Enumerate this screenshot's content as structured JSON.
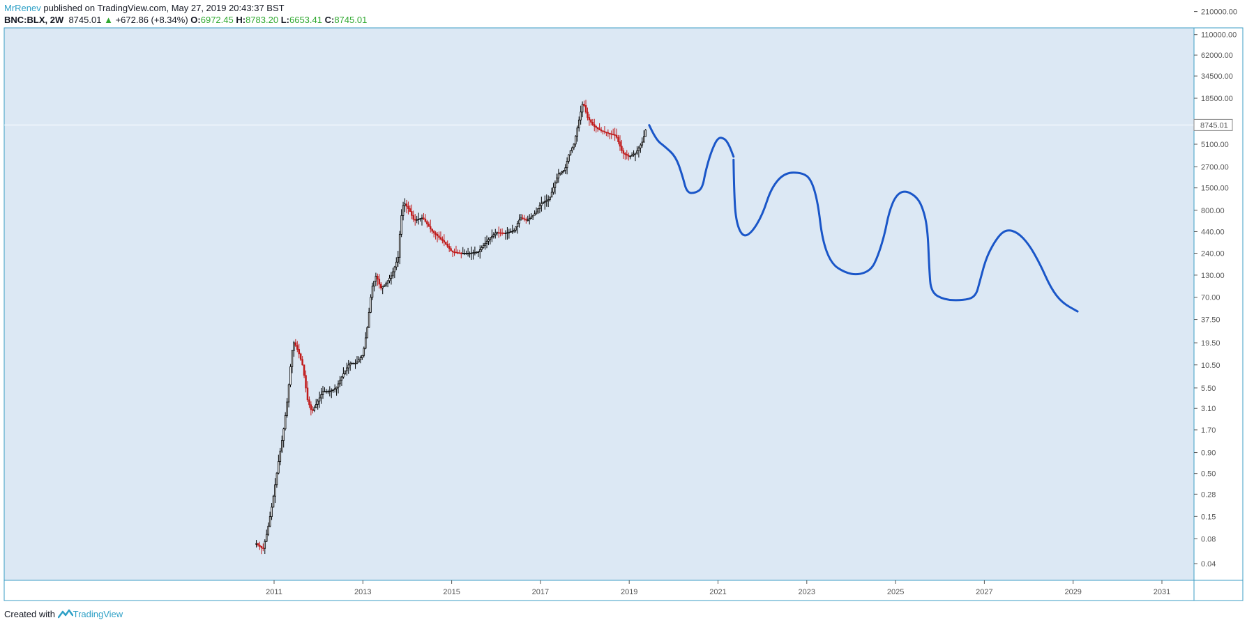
{
  "header": {
    "author": "MrRenev",
    "published_text": "published on TradingView.com, May 27, 2019 20:43:37 BST",
    "symbol": "BNC:BLX, 2W",
    "last": "8745.01",
    "change_arrow": "▲",
    "change": "+672.86 (+8.34%)",
    "open_label": "O:",
    "open": "6972.45",
    "high_label": "H:",
    "high": "8783.20",
    "low_label": "L:",
    "low": "6653.41",
    "close_label": "C:",
    "close": "8745.01"
  },
  "footer": {
    "created_with": "Created with",
    "brand": "TradingView"
  },
  "colors": {
    "background": "#dce8f4",
    "up": "#000000",
    "down": "#c01818",
    "drawing": "#1a56c8",
    "accent": "#2ea0c6"
  },
  "chart_data": {
    "type": "line",
    "y_scale": "log",
    "price_label": "8745.01",
    "y_ticks": [
      "210000.00",
      "110000.00",
      "62000.00",
      "34500.00",
      "18500.00",
      "5100.00",
      "2700.00",
      "1500.00",
      "800.00",
      "440.00",
      "240.00",
      "130.00",
      "70.00",
      "37.50",
      "19.50",
      "10.50",
      "5.50",
      "3.10",
      "1.70",
      "0.90",
      "0.50",
      "0.28",
      "0.15",
      "0.08",
      "0.04"
    ],
    "x_ticks": [
      "2011",
      "2013",
      "2015",
      "2017",
      "2019",
      "2021",
      "2023",
      "2025",
      "2027",
      "2029",
      "2031"
    ],
    "series": [
      {
        "points": [
          [
            2010.6,
            0.07
          ],
          [
            2010.75,
            0.06
          ],
          [
            2010.85,
            0.1
          ],
          [
            2010.95,
            0.2
          ],
          [
            2011.0,
            0.3
          ],
          [
            2011.1,
            0.7
          ],
          [
            2011.2,
            1.5
          ],
          [
            2011.3,
            4
          ],
          [
            2011.4,
            15
          ],
          [
            2011.45,
            20
          ],
          [
            2011.55,
            15
          ],
          [
            2011.65,
            10
          ],
          [
            2011.75,
            4
          ],
          [
            2011.85,
            2.8
          ],
          [
            2011.95,
            3.5
          ],
          [
            2012.1,
            5
          ],
          [
            2012.25,
            5
          ],
          [
            2012.4,
            5.5
          ],
          [
            2012.55,
            8
          ],
          [
            2012.7,
            11
          ],
          [
            2012.85,
            11
          ],
          [
            2013.0,
            14
          ],
          [
            2013.1,
            30
          ],
          [
            2013.2,
            90
          ],
          [
            2013.3,
            130
          ],
          [
            2013.4,
            90
          ],
          [
            2013.5,
            100
          ],
          [
            2013.65,
            130
          ],
          [
            2013.8,
            220
          ],
          [
            2013.85,
            600
          ],
          [
            2013.92,
            1000
          ],
          [
            2014.05,
            800
          ],
          [
            2014.15,
            600
          ],
          [
            2014.35,
            650
          ],
          [
            2014.55,
            450
          ],
          [
            2014.7,
            380
          ],
          [
            2014.85,
            320
          ],
          [
            2015.0,
            250
          ],
          [
            2015.2,
            240
          ],
          [
            2015.4,
            240
          ],
          [
            2015.6,
            250
          ],
          [
            2015.8,
            340
          ],
          [
            2016.0,
            430
          ],
          [
            2016.2,
            420
          ],
          [
            2016.4,
            450
          ],
          [
            2016.55,
            650
          ],
          [
            2016.7,
            600
          ],
          [
            2016.9,
            750
          ],
          [
            2017.0,
            950
          ],
          [
            2017.2,
            1100
          ],
          [
            2017.4,
            2200
          ],
          [
            2017.55,
            2500
          ],
          [
            2017.65,
            4000
          ],
          [
            2017.75,
            5000
          ],
          [
            2017.85,
            9000
          ],
          [
            2017.96,
            17000
          ],
          [
            2018.05,
            11000
          ],
          [
            2018.2,
            8500
          ],
          [
            2018.35,
            7500
          ],
          [
            2018.5,
            7000
          ],
          [
            2018.7,
            6500
          ],
          [
            2018.85,
            4000
          ],
          [
            2019.0,
            3600
          ],
          [
            2019.15,
            4000
          ],
          [
            2019.3,
            5500
          ],
          [
            2019.4,
            8745
          ]
        ]
      },
      {
        "points": [
          [
            2019.45,
            8700
          ],
          [
            2019.6,
            5800
          ],
          [
            2019.8,
            4800
          ],
          [
            2020.05,
            3600
          ],
          [
            2020.2,
            2100
          ],
          [
            2020.3,
            1300
          ],
          [
            2020.5,
            1300
          ],
          [
            2020.65,
            1500
          ],
          [
            2020.72,
            2400
          ],
          [
            2020.85,
            4200
          ],
          [
            2021.0,
            6200
          ],
          [
            2021.15,
            6000
          ],
          [
            2021.25,
            5000
          ],
          [
            2021.35,
            3600
          ]
        ]
      },
      {
        "points": [
          [
            2021.35,
            3300
          ],
          [
            2021.36,
            1500
          ],
          [
            2021.4,
            600
          ],
          [
            2021.55,
            380
          ],
          [
            2021.75,
            420
          ],
          [
            2022.0,
            700
          ],
          [
            2022.2,
            1500
          ],
          [
            2022.5,
            2300
          ],
          [
            2022.9,
            2300
          ],
          [
            2023.1,
            1900
          ],
          [
            2023.25,
            1000
          ],
          [
            2023.35,
            350
          ],
          [
            2023.55,
            180
          ],
          [
            2023.85,
            140
          ],
          [
            2024.15,
            130
          ],
          [
            2024.45,
            150
          ],
          [
            2024.6,
            220
          ],
          [
            2024.75,
            400
          ],
          [
            2024.85,
            750
          ],
          [
            2025.0,
            1200
          ],
          [
            2025.2,
            1400
          ],
          [
            2025.45,
            1200
          ],
          [
            2025.6,
            900
          ],
          [
            2025.72,
            500
          ],
          [
            2025.76,
            150
          ],
          [
            2025.8,
            80
          ],
          [
            2026.1,
            65
          ],
          [
            2026.5,
            64
          ],
          [
            2026.8,
            70
          ],
          [
            2026.9,
            110
          ],
          [
            2027.05,
            220
          ],
          [
            2027.3,
            380
          ],
          [
            2027.5,
            470
          ],
          [
            2027.75,
            430
          ],
          [
            2028.0,
            310
          ],
          [
            2028.25,
            180
          ],
          [
            2028.5,
            90
          ],
          [
            2028.75,
            60
          ],
          [
            2029.1,
            47
          ]
        ]
      }
    ]
  }
}
